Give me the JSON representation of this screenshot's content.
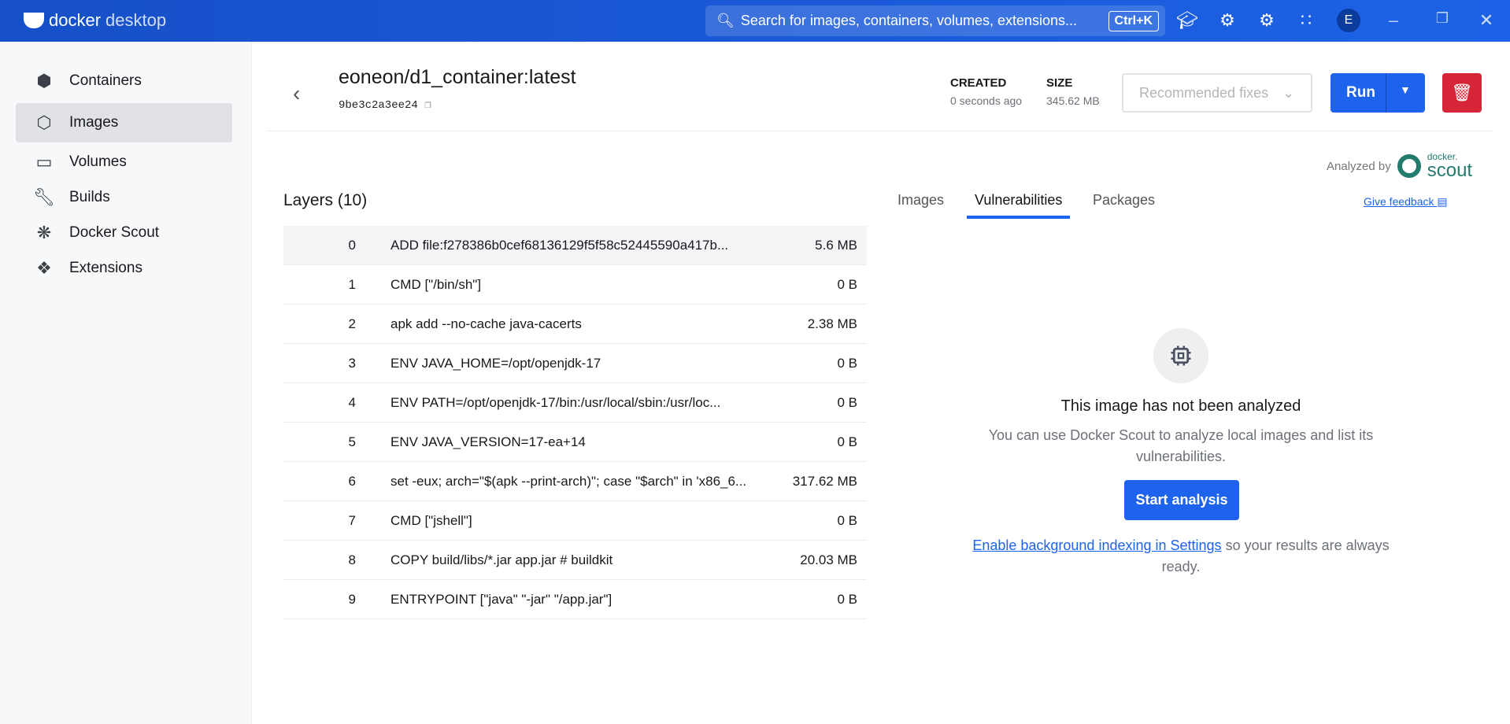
{
  "app": {
    "logo_bold": "docker",
    "logo_light": "desktop",
    "search_placeholder": "Search for images, containers, volumes, extensions...",
    "search_shortcut": "Ctrl+K",
    "avatar": "E"
  },
  "sidebar": {
    "items": [
      {
        "label": "Containers",
        "icon": "container-icon"
      },
      {
        "label": "Images",
        "icon": "images-icon",
        "active": true
      },
      {
        "label": "Volumes",
        "icon": "volume-icon"
      },
      {
        "label": "Builds",
        "icon": "wrench-icon"
      },
      {
        "label": "Docker Scout",
        "icon": "scout-icon"
      },
      {
        "label": "Extensions",
        "icon": "puzzle-icon"
      }
    ]
  },
  "header": {
    "title": "eoneon/d1_container:latest",
    "hash": "9be3c2a3ee24",
    "created_label": "CREATED",
    "created_value": "0 seconds ago",
    "size_label": "SIZE",
    "size_value": "345.62 MB",
    "recommended_fixes": "Recommended fixes",
    "run_label": "Run"
  },
  "scout": {
    "analyzed_by": "Analyzed by",
    "brand_small": "docker.",
    "brand_large": "scout"
  },
  "layers": {
    "title": "Layers (10)",
    "rows": [
      {
        "i": "0",
        "cmd": "ADD file:f278386b0cef68136129f5f58c52445590a417b...",
        "size": "5.6 MB"
      },
      {
        "i": "1",
        "cmd": "CMD [\"/bin/sh\"]",
        "size": "0 B"
      },
      {
        "i": "2",
        "cmd": "apk add --no-cache java-cacerts",
        "size": "2.38 MB"
      },
      {
        "i": "3",
        "cmd": "ENV JAVA_HOME=/opt/openjdk-17",
        "size": "0 B"
      },
      {
        "i": "4",
        "cmd": "ENV PATH=/opt/openjdk-17/bin:/usr/local/sbin:/usr/loc...",
        "size": "0 B"
      },
      {
        "i": "5",
        "cmd": "ENV JAVA_VERSION=17-ea+14",
        "size": "0 B"
      },
      {
        "i": "6",
        "cmd": "set -eux; arch=\"$(apk --print-arch)\"; case \"$arch\" in 'x86_6...",
        "size": "317.62 MB"
      },
      {
        "i": "7",
        "cmd": "CMD [\"jshell\"]",
        "size": "0 B"
      },
      {
        "i": "8",
        "cmd": "COPY build/libs/*.jar app.jar # buildkit",
        "size": "20.03 MB"
      },
      {
        "i": "9",
        "cmd": "ENTRYPOINT [\"java\" \"-jar\" \"/app.jar\"]",
        "size": "0 B"
      }
    ]
  },
  "tabs": {
    "images": "Images",
    "vulnerabilities": "Vulnerabilities",
    "packages": "Packages",
    "feedback": "Give feedback"
  },
  "empty": {
    "title": "This image has not been analyzed",
    "desc": "You can use Docker Scout to analyze local images and list its vulnerabilities.",
    "button": "Start analysis",
    "link": "Enable background indexing in Settings",
    "link_suffix": " so your results are always ready."
  },
  "colors": {
    "accent": "#1d63ed",
    "danger": "#d52536",
    "scout": "#237b6d"
  }
}
